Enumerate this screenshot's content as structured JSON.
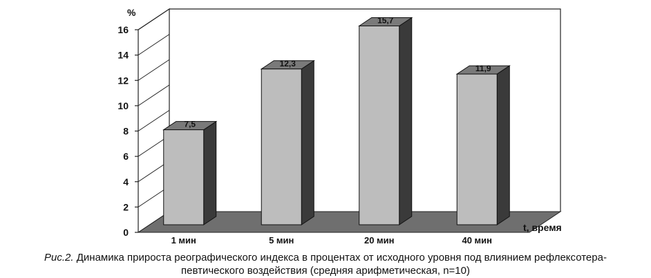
{
  "chart_data": {
    "type": "bar",
    "categories": [
      "1 мин",
      "5 мин",
      "20 мин",
      "40 мин"
    ],
    "values": [
      7.5,
      12.3,
      15.7,
      11.9
    ],
    "value_labels": [
      "7,5",
      "12,3",
      "15,7",
      "11,9"
    ],
    "ylabel": "%",
    "xlabel": "t, время",
    "ylim": [
      0,
      16
    ],
    "yticks": [
      0,
      2,
      4,
      6,
      8,
      10,
      12,
      14,
      16
    ],
    "grid": false,
    "style": "3d"
  },
  "caption": {
    "lead": "Рис.2.",
    "line1": " Динамика прироста реографического индекса в процентах от исходного уровня под влиянием рефлексотера-",
    "line2": "певтического воздействия (средняя арифметическая, n=10)"
  },
  "colors": {
    "bar_front": "#bdbdbd",
    "bar_side": "#3a3a3a",
    "bar_top": "#7a7a7a",
    "floor": "#6f6f6f",
    "frame": "#222222"
  }
}
